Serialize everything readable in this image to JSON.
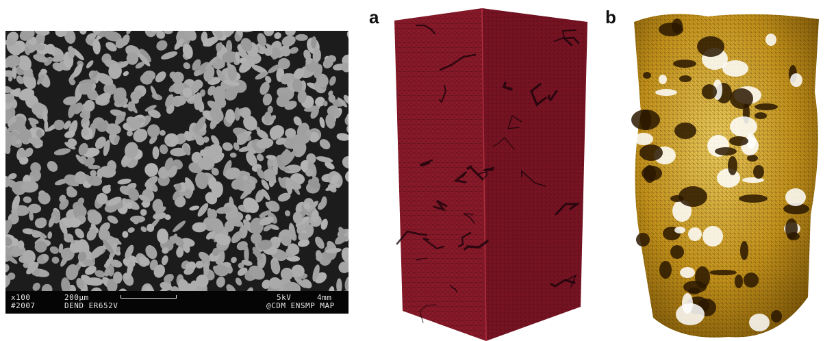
{
  "sem_image": {
    "info_bar": {
      "magnification": "x100",
      "scale": "200µm",
      "voltage": "5kV",
      "working_distance": "4mm",
      "image_number": "#2007",
      "sample": "DEND ER652V",
      "credit": "@CDM ENSMP MAP"
    }
  },
  "panels": {
    "a_label": "a",
    "b_label": "b"
  },
  "colors": {
    "sem_matrix": "#1c1c1c",
    "sem_dendrite": "#a9a9a9",
    "mesh_red": "#8e1b2a",
    "mesh_gold": "#c99a20",
    "background": "#ffffff"
  }
}
